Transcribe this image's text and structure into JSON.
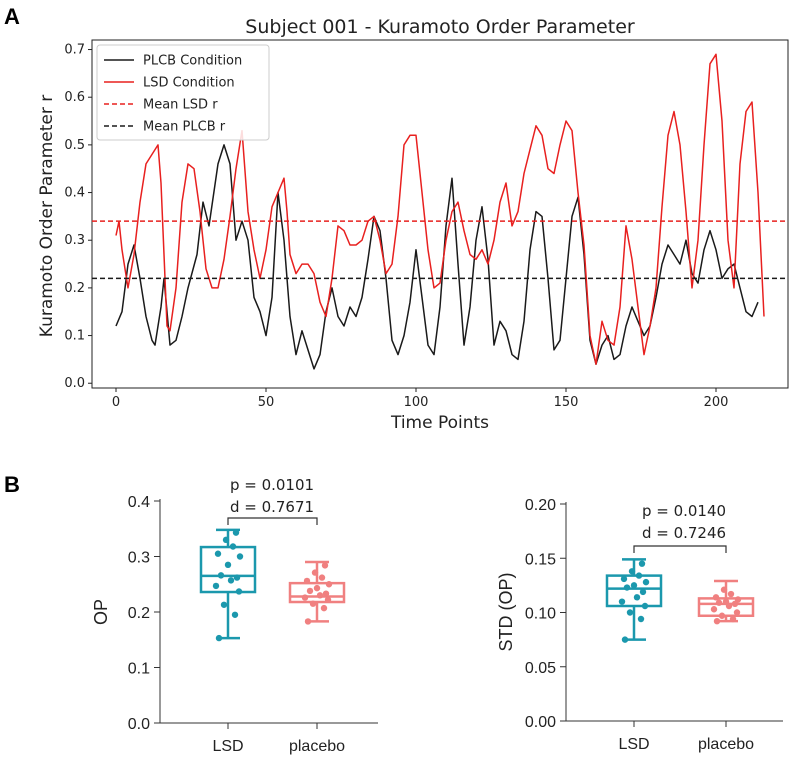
{
  "panels": {
    "a": "A",
    "b": "B"
  },
  "chart_data": [
    {
      "type": "line",
      "title": "Subject 001 - Kuramoto Order Parameter",
      "xlabel": "Time Points",
      "ylabel": "Kuramoto Order Parameter r",
      "xlim": [
        -8,
        224
      ],
      "ylim": [
        -0.01,
        0.72
      ],
      "xticks": [
        0,
        50,
        100,
        150,
        200
      ],
      "yticks": [
        0.0,
        0.1,
        0.2,
        0.3,
        0.4,
        0.5,
        0.6,
        0.7
      ],
      "legend": {
        "position": "top-left",
        "entries": [
          "PLCB Condition",
          "LSD Condition",
          "Mean LSD r",
          "Mean PLCB r"
        ]
      },
      "series": [
        {
          "name": "PLCB Condition",
          "color": "#1a1a1a",
          "style": "solid",
          "points": [
            [
              0,
              0.12
            ],
            [
              2,
              0.15
            ],
            [
              4,
              0.25
            ],
            [
              6,
              0.29
            ],
            [
              8,
              0.22
            ],
            [
              10,
              0.14
            ],
            [
              12,
              0.09
            ],
            [
              13,
              0.08
            ],
            [
              15,
              0.16
            ],
            [
              16,
              0.22
            ],
            [
              18,
              0.08
            ],
            [
              20,
              0.09
            ],
            [
              22,
              0.14
            ],
            [
              24,
              0.2
            ],
            [
              27,
              0.27
            ],
            [
              29,
              0.38
            ],
            [
              31,
              0.33
            ],
            [
              34,
              0.46
            ],
            [
              36,
              0.5
            ],
            [
              38,
              0.46
            ],
            [
              40,
              0.3
            ],
            [
              42,
              0.34
            ],
            [
              44,
              0.3
            ],
            [
              46,
              0.18
            ],
            [
              48,
              0.15
            ],
            [
              50,
              0.1
            ],
            [
              52,
              0.18
            ],
            [
              54,
              0.4
            ],
            [
              56,
              0.3
            ],
            [
              58,
              0.14
            ],
            [
              60,
              0.06
            ],
            [
              62,
              0.11
            ],
            [
              64,
              0.07
            ],
            [
              66,
              0.03
            ],
            [
              68,
              0.06
            ],
            [
              70,
              0.15
            ],
            [
              72,
              0.2
            ],
            [
              74,
              0.14
            ],
            [
              76,
              0.12
            ],
            [
              78,
              0.16
            ],
            [
              80,
              0.14
            ],
            [
              82,
              0.18
            ],
            [
              84,
              0.26
            ],
            [
              86,
              0.35
            ],
            [
              88,
              0.32
            ],
            [
              90,
              0.22
            ],
            [
              92,
              0.09
            ],
            [
              94,
              0.06
            ],
            [
              96,
              0.1
            ],
            [
              98,
              0.17
            ],
            [
              100,
              0.28
            ],
            [
              102,
              0.18
            ],
            [
              104,
              0.08
            ],
            [
              106,
              0.06
            ],
            [
              108,
              0.16
            ],
            [
              110,
              0.33
            ],
            [
              112,
              0.43
            ],
            [
              114,
              0.25
            ],
            [
              116,
              0.08
            ],
            [
              118,
              0.16
            ],
            [
              120,
              0.3
            ],
            [
              122,
              0.37
            ],
            [
              124,
              0.26
            ],
            [
              126,
              0.08
            ],
            [
              128,
              0.13
            ],
            [
              130,
              0.11
            ],
            [
              132,
              0.06
            ],
            [
              134,
              0.05
            ],
            [
              136,
              0.13
            ],
            [
              138,
              0.28
            ],
            [
              140,
              0.36
            ],
            [
              142,
              0.35
            ],
            [
              144,
              0.22
            ],
            [
              146,
              0.07
            ],
            [
              148,
              0.09
            ],
            [
              150,
              0.22
            ],
            [
              152,
              0.35
            ],
            [
              154,
              0.39
            ],
            [
              156,
              0.27
            ],
            [
              158,
              0.09
            ],
            [
              160,
              0.04
            ],
            [
              162,
              0.08
            ],
            [
              164,
              0.1
            ],
            [
              166,
              0.05
            ],
            [
              168,
              0.06
            ],
            [
              170,
              0.12
            ],
            [
              172,
              0.16
            ],
            [
              174,
              0.13
            ],
            [
              176,
              0.1
            ],
            [
              178,
              0.12
            ],
            [
              180,
              0.18
            ],
            [
              182,
              0.25
            ],
            [
              184,
              0.29
            ],
            [
              186,
              0.27
            ],
            [
              188,
              0.25
            ],
            [
              190,
              0.3
            ],
            [
              192,
              0.23
            ],
            [
              194,
              0.21
            ],
            [
              196,
              0.28
            ],
            [
              198,
              0.32
            ],
            [
              200,
              0.28
            ],
            [
              202,
              0.22
            ],
            [
              204,
              0.24
            ],
            [
              206,
              0.25
            ],
            [
              208,
              0.2
            ],
            [
              210,
              0.15
            ],
            [
              212,
              0.14
            ],
            [
              214,
              0.17
            ]
          ]
        },
        {
          "name": "LSD Condition",
          "color": "#e8201f",
          "style": "solid",
          "points": [
            [
              0,
              0.31
            ],
            [
              1,
              0.34
            ],
            [
              2,
              0.28
            ],
            [
              4,
              0.2
            ],
            [
              6,
              0.27
            ],
            [
              8,
              0.38
            ],
            [
              10,
              0.46
            ],
            [
              12,
              0.48
            ],
            [
              14,
              0.5
            ],
            [
              15,
              0.42
            ],
            [
              17,
              0.12
            ],
            [
              18,
              0.11
            ],
            [
              20,
              0.2
            ],
            [
              22,
              0.38
            ],
            [
              24,
              0.46
            ],
            [
              26,
              0.45
            ],
            [
              28,
              0.36
            ],
            [
              30,
              0.24
            ],
            [
              32,
              0.2
            ],
            [
              34,
              0.2
            ],
            [
              36,
              0.26
            ],
            [
              38,
              0.35
            ],
            [
              40,
              0.45
            ],
            [
              42,
              0.53
            ],
            [
              44,
              0.36
            ],
            [
              46,
              0.28
            ],
            [
              48,
              0.22
            ],
            [
              50,
              0.28
            ],
            [
              52,
              0.37
            ],
            [
              54,
              0.4
            ],
            [
              56,
              0.43
            ],
            [
              57,
              0.36
            ],
            [
              58,
              0.27
            ],
            [
              60,
              0.23
            ],
            [
              62,
              0.25
            ],
            [
              64,
              0.25
            ],
            [
              66,
              0.23
            ],
            [
              68,
              0.17
            ],
            [
              70,
              0.14
            ],
            [
              72,
              0.22
            ],
            [
              74,
              0.33
            ],
            [
              76,
              0.32
            ],
            [
              78,
              0.29
            ],
            [
              80,
              0.29
            ],
            [
              82,
              0.3
            ],
            [
              84,
              0.34
            ],
            [
              86,
              0.35
            ],
            [
              88,
              0.3
            ],
            [
              90,
              0.23
            ],
            [
              92,
              0.25
            ],
            [
              94,
              0.35
            ],
            [
              96,
              0.5
            ],
            [
              98,
              0.52
            ],
            [
              100,
              0.52
            ],
            [
              102,
              0.4
            ],
            [
              104,
              0.28
            ],
            [
              106,
              0.2
            ],
            [
              108,
              0.21
            ],
            [
              110,
              0.3
            ],
            [
              112,
              0.36
            ],
            [
              114,
              0.38
            ],
            [
              116,
              0.32
            ],
            [
              118,
              0.27
            ],
            [
              120,
              0.26
            ],
            [
              122,
              0.28
            ],
            [
              124,
              0.25
            ],
            [
              126,
              0.3
            ],
            [
              128,
              0.38
            ],
            [
              130,
              0.42
            ],
            [
              132,
              0.33
            ],
            [
              134,
              0.36
            ],
            [
              136,
              0.44
            ],
            [
              138,
              0.49
            ],
            [
              140,
              0.54
            ],
            [
              142,
              0.52
            ],
            [
              144,
              0.45
            ],
            [
              146,
              0.44
            ],
            [
              148,
              0.5
            ],
            [
              150,
              0.55
            ],
            [
              152,
              0.53
            ],
            [
              154,
              0.4
            ],
            [
              156,
              0.29
            ],
            [
              158,
              0.1
            ],
            [
              160,
              0.04
            ],
            [
              162,
              0.13
            ],
            [
              164,
              0.09
            ],
            [
              166,
              0.08
            ],
            [
              168,
              0.16
            ],
            [
              170,
              0.33
            ],
            [
              172,
              0.26
            ],
            [
              174,
              0.16
            ],
            [
              176,
              0.06
            ],
            [
              178,
              0.12
            ],
            [
              180,
              0.2
            ],
            [
              182,
              0.37
            ],
            [
              184,
              0.52
            ],
            [
              186,
              0.57
            ],
            [
              188,
              0.5
            ],
            [
              190,
              0.36
            ],
            [
              192,
              0.2
            ],
            [
              194,
              0.3
            ],
            [
              196,
              0.5
            ],
            [
              198,
              0.67
            ],
            [
              200,
              0.69
            ],
            [
              202,
              0.55
            ],
            [
              204,
              0.3
            ],
            [
              206,
              0.2
            ],
            [
              208,
              0.46
            ],
            [
              210,
              0.57
            ],
            [
              212,
              0.59
            ],
            [
              214,
              0.4
            ],
            [
              216,
              0.14
            ]
          ]
        },
        {
          "name": "Mean LSD r",
          "color": "#e8201f",
          "style": "dashed",
          "value": 0.34
        },
        {
          "name": "Mean PLCB r",
          "color": "#1a1a1a",
          "style": "dashed",
          "value": 0.22
        }
      ]
    },
    {
      "type": "box",
      "ylabel": "OP",
      "ylim": [
        0,
        0.4
      ],
      "yticks": [
        "0.0",
        "0.1",
        "0.2",
        "0.3",
        "0.4"
      ],
      "categories": [
        "LSD",
        "placebo"
      ],
      "annotation": {
        "p": "p = 0.0101",
        "d": "d = 0.7671"
      },
      "boxes": [
        {
          "category": "LSD",
          "color": "#1b98ad",
          "whisker_low": 0.153,
          "q1": 0.236,
          "median": 0.265,
          "q3": 0.317,
          "whisker_high": 0.348,
          "points": [
            0.153,
            0.195,
            0.213,
            0.237,
            0.247,
            0.257,
            0.262,
            0.266,
            0.285,
            0.3,
            0.305,
            0.318,
            0.33,
            0.343
          ]
        },
        {
          "category": "placebo",
          "color": "#f08080",
          "whisker_low": 0.183,
          "q1": 0.218,
          "median": 0.228,
          "q3": 0.252,
          "whisker_high": 0.29,
          "points": [
            0.183,
            0.207,
            0.215,
            0.222,
            0.226,
            0.23,
            0.233,
            0.238,
            0.243,
            0.25,
            0.256,
            0.262,
            0.271,
            0.284
          ]
        }
      ]
    },
    {
      "type": "box",
      "ylabel": "STD (OP)",
      "ylim": [
        0,
        0.2
      ],
      "yticks": [
        "0.00",
        "0.05",
        "0.10",
        "0.15",
        "0.20"
      ],
      "categories": [
        "LSD",
        "placebo"
      ],
      "annotation": {
        "p": "p = 0.0140",
        "d": "d = 0.7246"
      },
      "boxes": [
        {
          "category": "LSD",
          "color": "#1b98ad",
          "whisker_low": 0.075,
          "q1": 0.106,
          "median": 0.122,
          "q3": 0.134,
          "whisker_high": 0.149,
          "points": [
            0.075,
            0.094,
            0.1,
            0.106,
            0.11,
            0.114,
            0.119,
            0.123,
            0.125,
            0.128,
            0.131,
            0.134,
            0.138,
            0.145
          ]
        },
        {
          "category": "placebo",
          "color": "#f08080",
          "whisker_low": 0.092,
          "q1": 0.097,
          "median": 0.108,
          "q3": 0.113,
          "whisker_high": 0.129,
          "points": [
            0.092,
            0.094,
            0.097,
            0.1,
            0.103,
            0.106,
            0.108,
            0.109,
            0.11,
            0.112,
            0.114,
            0.117,
            0.121
          ]
        }
      ]
    }
  ]
}
